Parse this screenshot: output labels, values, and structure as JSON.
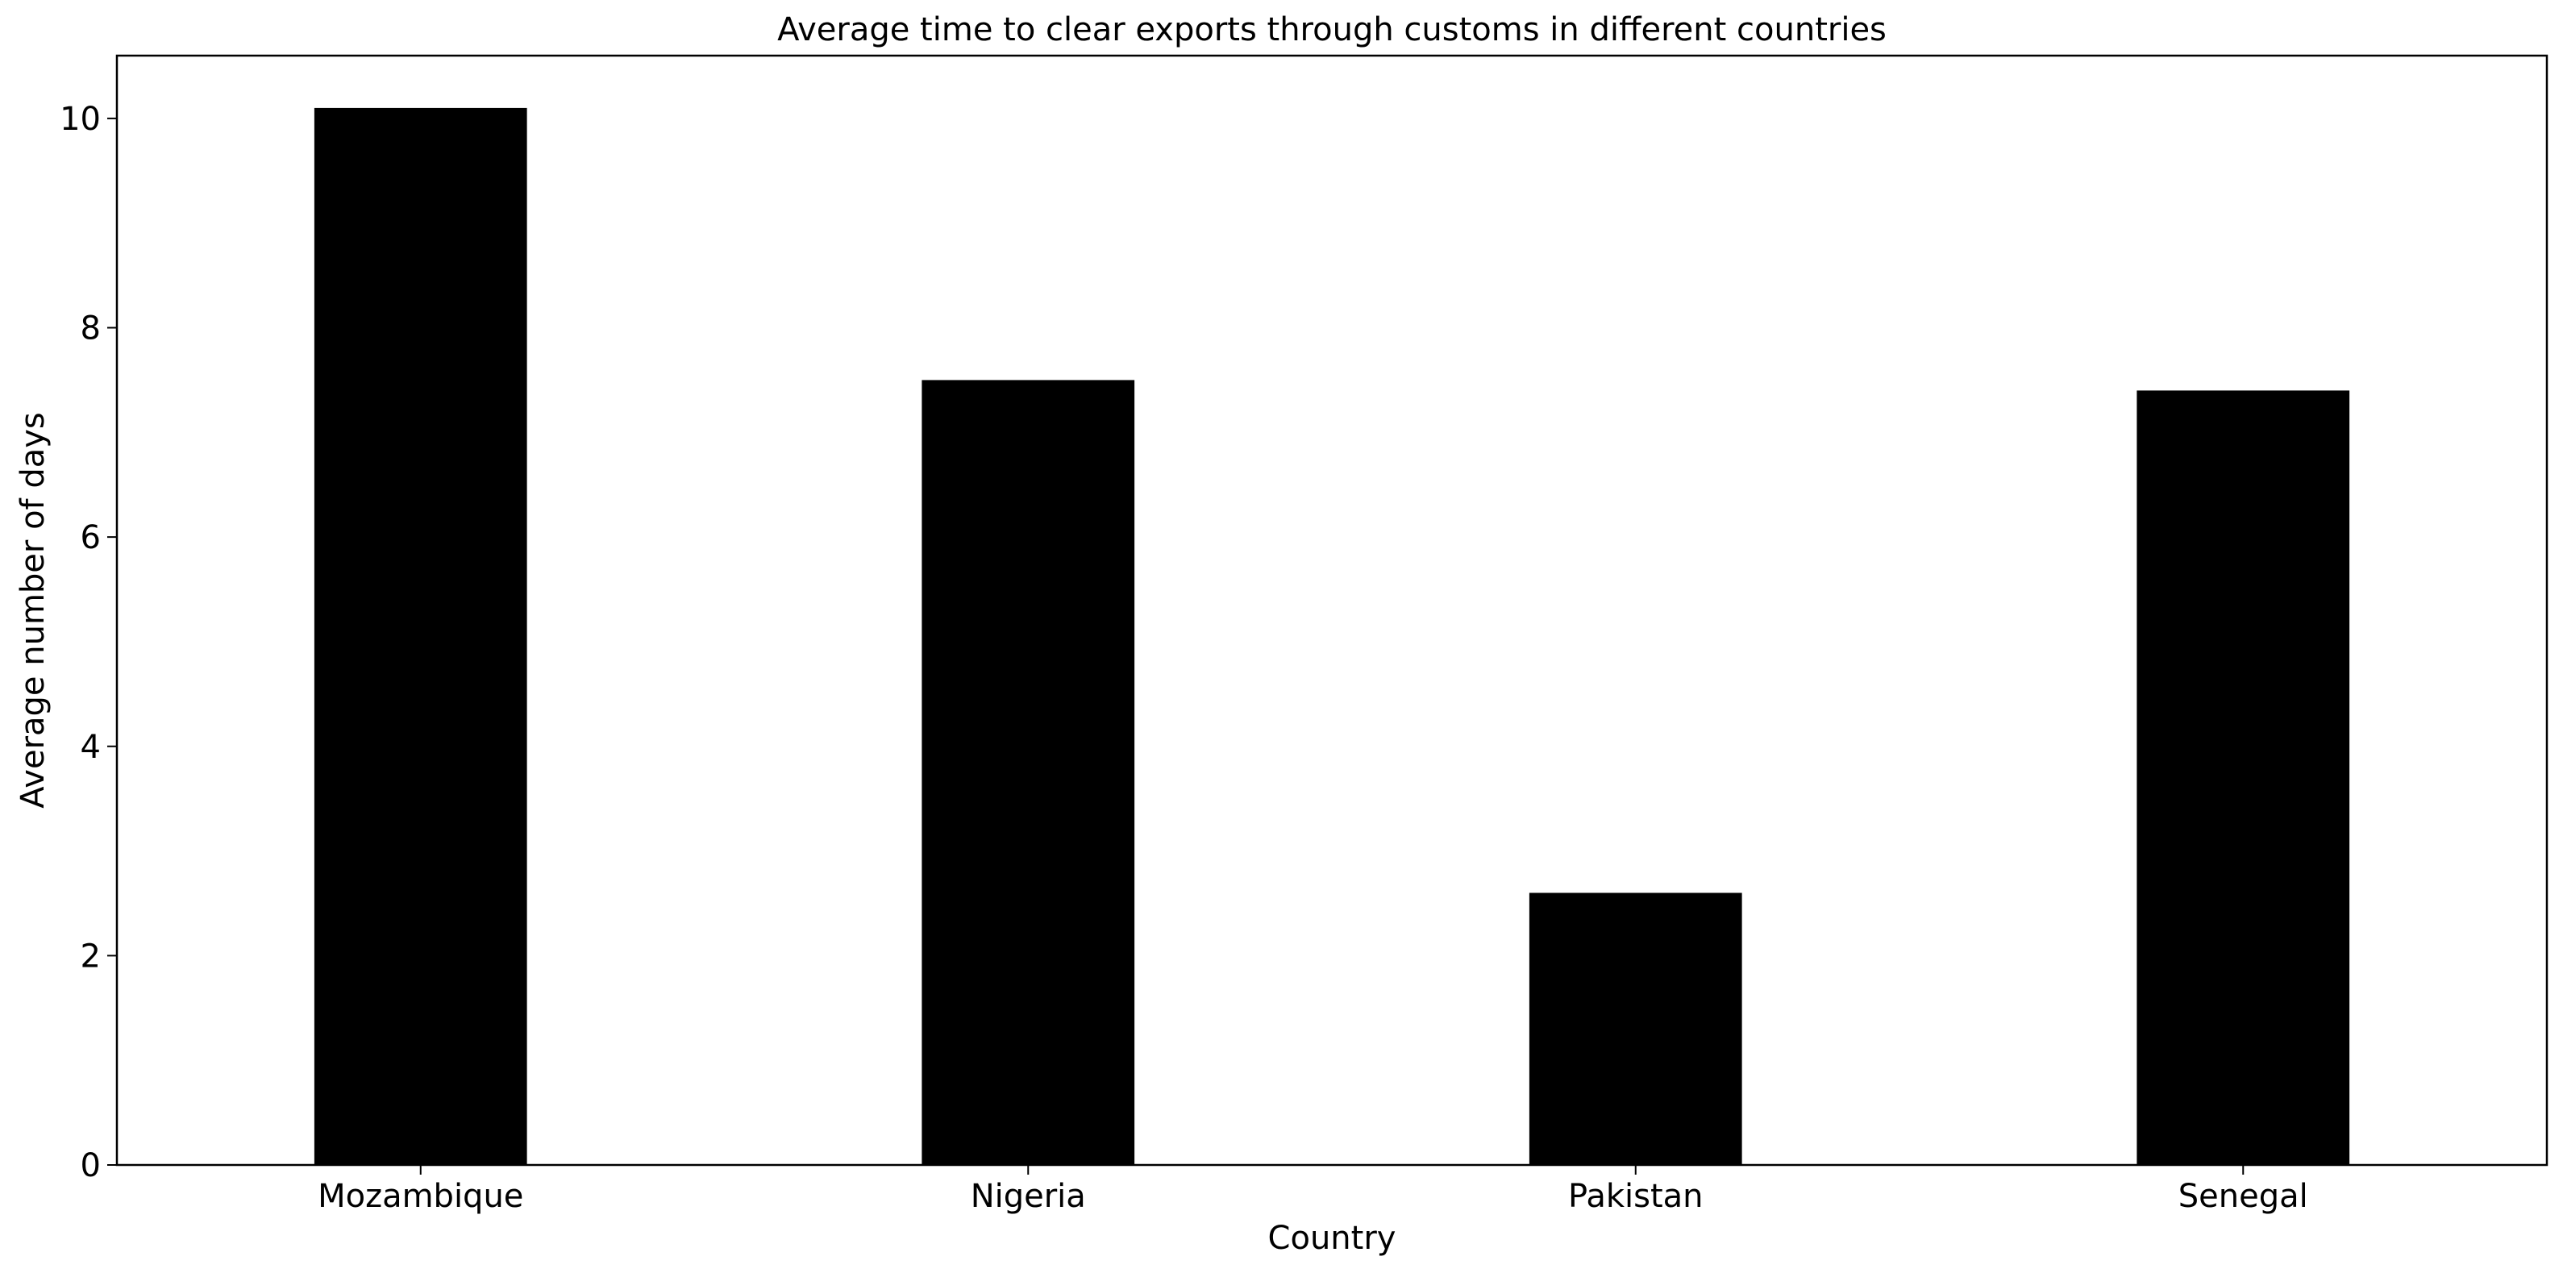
{
  "chart_data": {
    "type": "bar",
    "title": "Average time to clear exports through customs in different countries",
    "xlabel": "Country",
    "ylabel": "Average number of days",
    "categories": [
      "Mozambique",
      "Nigeria",
      "Pakistan",
      "Senegal"
    ],
    "values": [
      10.1,
      7.5,
      2.6,
      7.4
    ],
    "ylim": [
      0,
      10.6
    ],
    "yticks": [
      "0",
      "2",
      "4",
      "6",
      "8",
      "10"
    ],
    "bar_color": "#000000",
    "grid": false,
    "legend": "none"
  }
}
